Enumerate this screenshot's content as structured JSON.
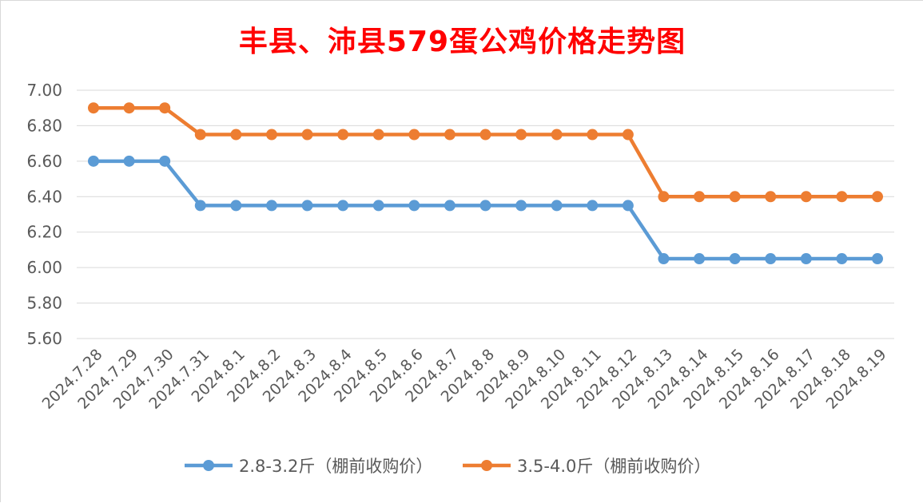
{
  "chart_data": {
    "type": "line",
    "title": "丰县、沛县579蛋公鸡价格走势图",
    "xlabel": "",
    "ylabel": "",
    "ylim": [
      5.6,
      7.0
    ],
    "yticks": [
      "7.00",
      "6.80",
      "6.60",
      "6.40",
      "6.20",
      "6.00",
      "5.80",
      "5.60"
    ],
    "grid": true,
    "legend_position": "bottom",
    "categories": [
      "2024.7.28",
      "2024.7.29",
      "2024.7.30",
      "2024.7.31",
      "2024.8.1",
      "2024.8.2",
      "2024.8.3",
      "2024.8.4",
      "2024.8.5",
      "2024.8.6",
      "2024.8.7",
      "2024.8.8",
      "2024.8.9",
      "2024.8.10",
      "2024.8.11",
      "2024.8.12",
      "2024.8.13",
      "2024.8.14",
      "2024.8.15",
      "2024.8.16",
      "2024.8.17",
      "2024.8.18",
      "2024.8.19"
    ],
    "series": [
      {
        "name": "2.8-3.2斤（棚前收购价）",
        "color": "#5b9bd5",
        "values": [
          6.6,
          6.6,
          6.6,
          6.35,
          6.35,
          6.35,
          6.35,
          6.35,
          6.35,
          6.35,
          6.35,
          6.35,
          6.35,
          6.35,
          6.35,
          6.35,
          6.05,
          6.05,
          6.05,
          6.05,
          6.05,
          6.05,
          6.05
        ]
      },
      {
        "name": "3.5-4.0斤（棚前收购价）",
        "color": "#ed7d31",
        "values": [
          6.9,
          6.9,
          6.9,
          6.75,
          6.75,
          6.75,
          6.75,
          6.75,
          6.75,
          6.75,
          6.75,
          6.75,
          6.75,
          6.75,
          6.75,
          6.75,
          6.4,
          6.4,
          6.4,
          6.4,
          6.4,
          6.4,
          6.4
        ]
      }
    ],
    "colors": {
      "title": "#ff0000",
      "grid": "#d9d9d9",
      "tick_text": "#595959"
    }
  }
}
